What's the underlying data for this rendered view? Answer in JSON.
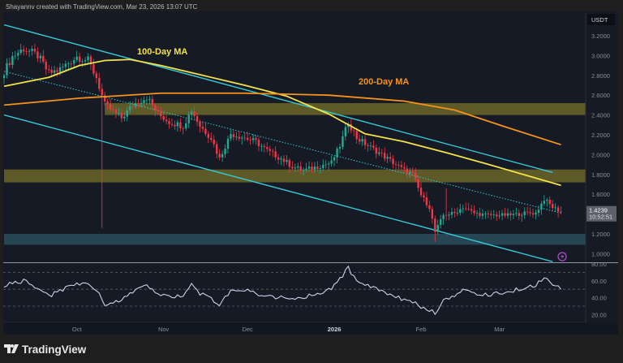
{
  "header": {
    "attribution": "Shayannv created with TradingView.com, Mar 23, 2026 13:07 UTC"
  },
  "footer": {
    "logo_text": "TradingView"
  },
  "colors": {
    "background": "#161a25",
    "up": "#22ab94",
    "down": "#f23645",
    "ma100": "#f3e24a",
    "ma200": "#f7931a",
    "channel": "#35c9d6",
    "zone": "#b5a92d",
    "support_zone": "#3a7d8c",
    "rsi": "#c9d3ea"
  },
  "chart_data": [
    {
      "type": "candlestick",
      "currency_label": "USDT",
      "ylim": [
        0.9,
        3.3
      ],
      "y_ticks": [
        "3.2000",
        "3.0000",
        "2.8000",
        "2.6000",
        "2.4000",
        "2.2000",
        "2.0000",
        "1.8000",
        "1.6000",
        "1.2000",
        "1.0000"
      ],
      "x_ticks": [
        {
          "label": "Oct",
          "date": "2025-10-01",
          "bold": false
        },
        {
          "label": "Nov",
          "date": "2025-11-01",
          "bold": false
        },
        {
          "label": "Dec",
          "date": "2025-12-01",
          "bold": false
        },
        {
          "label": "2026",
          "date": "2026-01-01",
          "bold": true
        },
        {
          "label": "Feb",
          "date": "2026-02-01",
          "bold": false
        },
        {
          "label": "Mar",
          "date": "2026-03-01",
          "bold": false
        }
      ],
      "last_price": {
        "price": "1.4239",
        "countdown": "10:52:51"
      },
      "closes": [
        [
          "2025-09-05",
          2.84
        ],
        [
          "2025-09-08",
          2.99
        ],
        [
          "2025-09-12",
          3.07
        ],
        [
          "2025-09-17",
          3.0
        ],
        [
          "2025-09-21",
          2.82
        ],
        [
          "2025-09-25",
          2.86
        ],
        [
          "2025-10-01",
          2.99
        ],
        [
          "2025-10-05",
          2.95
        ],
        [
          "2025-10-08",
          2.78
        ],
        [
          "2025-10-11",
          2.5
        ],
        [
          "2025-10-17",
          2.37
        ],
        [
          "2025-10-21",
          2.5
        ],
        [
          "2025-10-26",
          2.58
        ],
        [
          "2025-10-30",
          2.41
        ],
        [
          "2025-11-03",
          2.33
        ],
        [
          "2025-11-08",
          2.29
        ],
        [
          "2025-11-11",
          2.45
        ],
        [
          "2025-11-14",
          2.29
        ],
        [
          "2025-11-18",
          2.17
        ],
        [
          "2025-11-21",
          1.96
        ],
        [
          "2025-11-25",
          2.21
        ],
        [
          "2025-11-30",
          2.17
        ],
        [
          "2025-12-04",
          2.13
        ],
        [
          "2025-12-08",
          2.04
        ],
        [
          "2025-12-13",
          1.96
        ],
        [
          "2025-12-17",
          1.88
        ],
        [
          "2025-12-21",
          1.84
        ],
        [
          "2025-12-26",
          1.88
        ],
        [
          "2025-12-31",
          1.92
        ],
        [
          "2026-01-03",
          2.09
        ],
        [
          "2026-01-06",
          2.33
        ],
        [
          "2026-01-09",
          2.17
        ],
        [
          "2026-01-13",
          2.09
        ],
        [
          "2026-01-18",
          2.0
        ],
        [
          "2026-01-22",
          1.92
        ],
        [
          "2026-01-26",
          1.84
        ],
        [
          "2026-01-29",
          1.8
        ],
        [
          "2026-02-01",
          1.59
        ],
        [
          "2026-02-04",
          1.47
        ],
        [
          "2026-02-06",
          1.22
        ],
        [
          "2026-02-09",
          1.39
        ],
        [
          "2026-02-13",
          1.41
        ],
        [
          "2026-02-16",
          1.47
        ],
        [
          "2026-02-20",
          1.41
        ],
        [
          "2026-02-24",
          1.39
        ],
        [
          "2026-03-01",
          1.39
        ],
        [
          "2026-03-05",
          1.39
        ],
        [
          "2026-03-10",
          1.41
        ],
        [
          "2026-03-14",
          1.41
        ],
        [
          "2026-03-17",
          1.55
        ],
        [
          "2026-03-20",
          1.47
        ],
        [
          "2026-03-23",
          1.4239
        ]
      ],
      "wick_extremes": [
        [
          "2025-10-10",
          1.26
        ],
        [
          "2026-02-06",
          1.12
        ],
        [
          "2026-02-10",
          1.66
        ]
      ],
      "moving_averages": [
        {
          "name": "100-Day MA",
          "color": "#f3e24a",
          "points": [
            [
              "2025-09-05",
              2.69
            ],
            [
              "2025-09-21",
              2.78
            ],
            [
              "2025-10-02",
              2.9
            ],
            [
              "2025-10-11",
              2.95
            ],
            [
              "2025-10-20",
              2.96
            ],
            [
              "2025-10-31",
              2.9
            ],
            [
              "2025-11-15",
              2.8
            ],
            [
              "2025-11-30",
              2.7
            ],
            [
              "2025-12-15",
              2.59
            ],
            [
              "2025-12-30",
              2.41
            ],
            [
              "2026-01-12",
              2.21
            ],
            [
              "2026-01-26",
              2.13
            ],
            [
              "2026-02-10",
              2.02
            ],
            [
              "2026-02-24",
              1.91
            ],
            [
              "2026-03-23",
              1.69
            ]
          ]
        },
        {
          "name": "200-Day MA",
          "color": "#f7931a",
          "points": [
            [
              "2025-09-05",
              2.5
            ],
            [
              "2025-10-02",
              2.57
            ],
            [
              "2025-10-31",
              2.62
            ],
            [
              "2025-11-30",
              2.62
            ],
            [
              "2025-12-30",
              2.6
            ],
            [
              "2026-01-26",
              2.54
            ],
            [
              "2026-02-13",
              2.45
            ],
            [
              "2026-03-02",
              2.29
            ],
            [
              "2026-03-23",
              2.1
            ]
          ]
        }
      ],
      "trend_lines": [
        {
          "style": "solid",
          "from": [
            "2025-09-05",
            3.31
          ],
          "to": [
            "2026-03-20",
            1.82
          ]
        },
        {
          "style": "solid",
          "from": [
            "2025-09-05",
            2.4
          ],
          "to": [
            "2026-03-20",
            0.92
          ]
        },
        {
          "style": "dotted",
          "from": [
            "2025-09-05",
            2.84
          ],
          "to": [
            "2026-03-23",
            1.41
          ]
        }
      ],
      "zones": [
        {
          "from_date": "2025-10-11",
          "low": 2.4,
          "high": 2.52,
          "color": "#b5a92d"
        },
        {
          "from_date": "2025-09-05",
          "low": 1.72,
          "high": 1.85,
          "color": "#b5a92d"
        },
        {
          "from_date": "2025-09-05",
          "low": 1.09,
          "high": 1.2,
          "color": "#3a7d8c"
        }
      ]
    },
    {
      "type": "line",
      "y_ticks": [
        "80.00",
        "60.00",
        "40.00",
        "20.00"
      ],
      "levels": [
        70,
        50,
        30
      ],
      "ylim": [
        20,
        80
      ],
      "rsi": [
        55,
        58,
        60,
        52,
        42,
        48,
        58,
        55,
        50,
        32,
        38,
        48,
        55,
        45,
        40,
        42,
        55,
        45,
        38,
        32,
        48,
        50,
        45,
        42,
        40,
        38,
        40,
        45,
        50,
        62,
        75,
        60,
        55,
        48,
        42,
        38,
        35,
        28,
        25,
        22,
        38,
        42,
        48,
        45,
        44,
        45,
        48,
        52,
        55,
        65,
        55,
        50
      ]
    }
  ]
}
